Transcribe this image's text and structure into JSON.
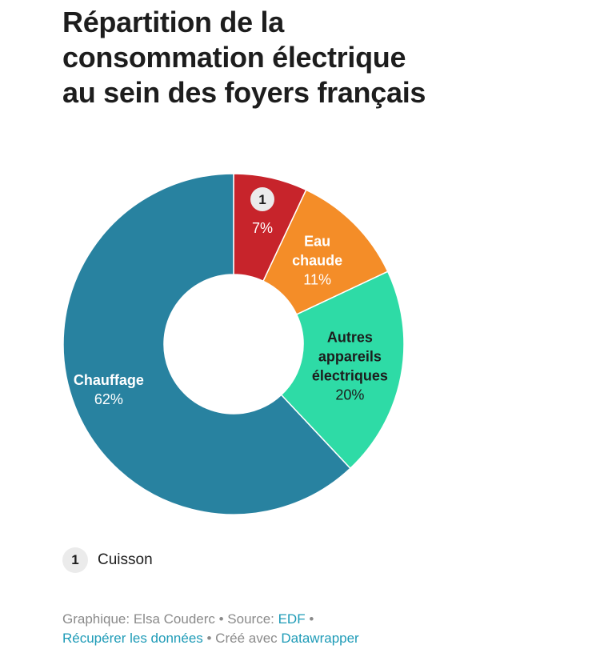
{
  "title": "Répartition de la consommation électrique au sein des foyers français",
  "chart_data": {
    "type": "pie",
    "variant": "donut",
    "slices": [
      {
        "label": "Cuisson",
        "value": 7,
        "value_label": "7%",
        "color": "#c7242b",
        "marker": "1",
        "text_color": "#ffffff"
      },
      {
        "label": "Eau chaude",
        "value": 11,
        "value_label": "11%",
        "color": "#f48d28",
        "text_color": "#ffffff"
      },
      {
        "label": "Autres appareils électriques",
        "value": 20,
        "value_label": "20%",
        "color": "#2edba6",
        "text_color": "#1d1d1d"
      },
      {
        "label": "Chauffage",
        "value": 62,
        "value_label": "62%",
        "color": "#2882a0",
        "text_color": "#ffffff"
      }
    ]
  },
  "legend": {
    "marker": "1",
    "label": "Cuisson"
  },
  "footer": {
    "credit_text": "Graphique: Elsa Couderc • Source: ",
    "source_link": "EDF",
    "separator": " •",
    "download_link": "Récupérer les données",
    "made_with_text": " • Créé avec ",
    "tool_link": "Datawrapper"
  }
}
